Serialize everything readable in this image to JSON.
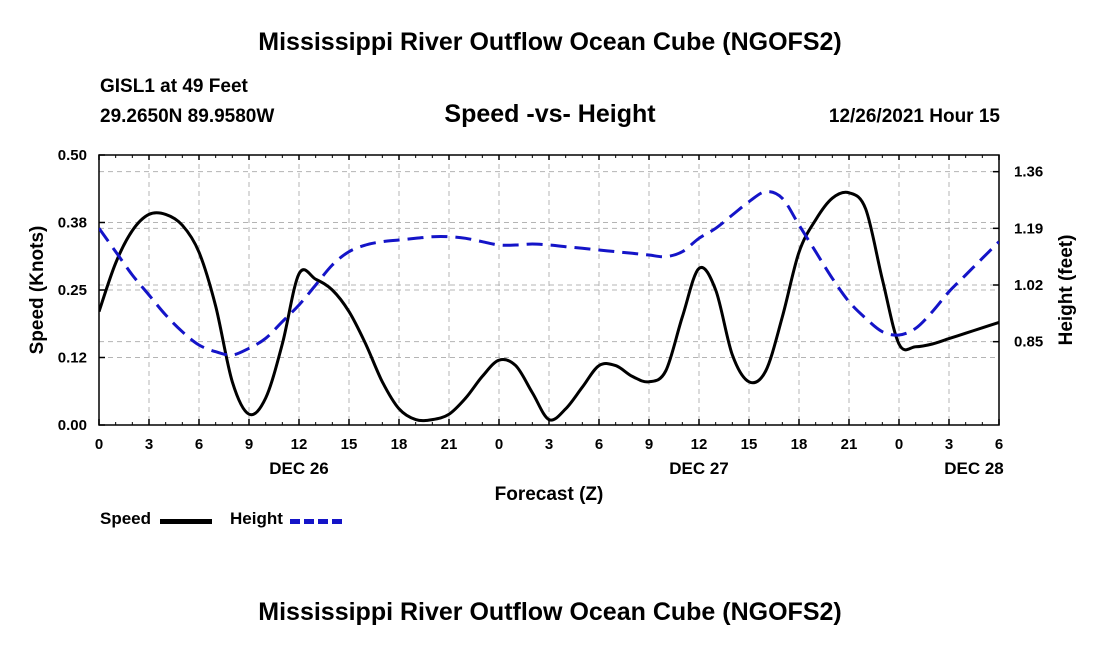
{
  "page": {
    "title": "Mississippi River Outflow Ocean Cube (NGOFS2)",
    "footer_title": "Mississippi River Outflow Ocean Cube (NGOFS2)",
    "station": "GISL1 at 49 Feet",
    "coordinates": "29.2650N  89.9580W",
    "datetime": "12/26/2021 Hour 15"
  },
  "legend": {
    "speed_label": "Speed",
    "height_label": "Height"
  },
  "colors": {
    "speed": "#000000",
    "height": "#1414c8",
    "grid": "#b4b4b4"
  },
  "chart_data": {
    "type": "line",
    "title": "Speed -vs- Height",
    "xlabel": "Forecast (Z)",
    "ylabel": "Speed (Knots)",
    "y2label": "Height (feet)",
    "x_range": [
      0,
      54
    ],
    "x_tick_values": [
      0,
      3,
      6,
      9,
      12,
      15,
      18,
      21,
      24,
      27,
      30,
      33,
      36,
      39,
      42,
      45,
      48,
      51,
      54
    ],
    "x_tick_labels": [
      "0",
      "3",
      "6",
      "9",
      "12",
      "15",
      "18",
      "21",
      "0",
      "3",
      "6",
      "9",
      "12",
      "15",
      "18",
      "21",
      "0",
      "3",
      "6"
    ],
    "date_labels": [
      {
        "x": 12,
        "label": "DEC 26"
      },
      {
        "x": 36,
        "label": "DEC 27"
      },
      {
        "x": 52.5,
        "label": "DEC 28"
      }
    ],
    "ylim": [
      0,
      0.5
    ],
    "y_ticks": [
      0.0,
      0.125,
      0.25,
      0.375,
      0.5
    ],
    "y_tick_labels": [
      "0.00",
      "0.12",
      "0.25",
      "0.38",
      "0.50"
    ],
    "y2lim": [
      0.6,
      1.41
    ],
    "y2_ticks": [
      0.85,
      1.02,
      1.19,
      1.36
    ],
    "y2_tick_labels": [
      "0.85",
      "1.02",
      "1.19",
      "1.36"
    ],
    "legend_position": "bottom-left",
    "grid": true,
    "series": [
      {
        "name": "Speed",
        "axis": "left",
        "style": "solid",
        "x": [
          0,
          1,
          2,
          3,
          4,
          5,
          6,
          7,
          8,
          9,
          10,
          11,
          12,
          13,
          14,
          15,
          16,
          17,
          18,
          19,
          20,
          21,
          22,
          23,
          24,
          25,
          26,
          27,
          28,
          29,
          30,
          31,
          32,
          33,
          34,
          35,
          36,
          37,
          38,
          39,
          40,
          41,
          42,
          43,
          44,
          45,
          46,
          47,
          48,
          49,
          50,
          51,
          52,
          53,
          54
        ],
        "values": [
          0.21,
          0.3,
          0.36,
          0.39,
          0.39,
          0.37,
          0.32,
          0.22,
          0.08,
          0.02,
          0.05,
          0.15,
          0.28,
          0.27,
          0.25,
          0.21,
          0.15,
          0.08,
          0.03,
          0.01,
          0.01,
          0.02,
          0.05,
          0.09,
          0.12,
          0.11,
          0.06,
          0.01,
          0.03,
          0.07,
          0.11,
          0.11,
          0.09,
          0.08,
          0.1,
          0.2,
          0.29,
          0.25,
          0.13,
          0.08,
          0.1,
          0.2,
          0.32,
          0.38,
          0.42,
          0.43,
          0.4,
          0.27,
          0.15,
          0.145,
          0.15,
          0.16,
          0.17,
          0.18,
          0.19
        ]
      },
      {
        "name": "Height",
        "axis": "right",
        "style": "dashed",
        "x": [
          0,
          1,
          2,
          3,
          4,
          5,
          6,
          7,
          8,
          9,
          10,
          11,
          12,
          13,
          14,
          15,
          16,
          17,
          18,
          19,
          20,
          21,
          22,
          23,
          24,
          25,
          26,
          27,
          28,
          29,
          30,
          31,
          32,
          33,
          34,
          35,
          36,
          37,
          38,
          39,
          40,
          41,
          42,
          43,
          44,
          45,
          46,
          47,
          48,
          49,
          50,
          51,
          52,
          53,
          54
        ],
        "values": [
          1.19,
          1.12,
          1.05,
          0.99,
          0.93,
          0.88,
          0.84,
          0.82,
          0.81,
          0.83,
          0.86,
          0.91,
          0.96,
          1.02,
          1.08,
          1.12,
          1.14,
          1.15,
          1.155,
          1.16,
          1.165,
          1.165,
          1.16,
          1.15,
          1.14,
          1.14,
          1.143,
          1.14,
          1.135,
          1.13,
          1.125,
          1.12,
          1.115,
          1.11,
          1.105,
          1.12,
          1.16,
          1.19,
          1.23,
          1.27,
          1.3,
          1.28,
          1.2,
          1.12,
          1.04,
          0.97,
          0.92,
          0.88,
          0.87,
          0.89,
          0.94,
          1.0,
          1.05,
          1.1,
          1.15
        ]
      }
    ]
  }
}
